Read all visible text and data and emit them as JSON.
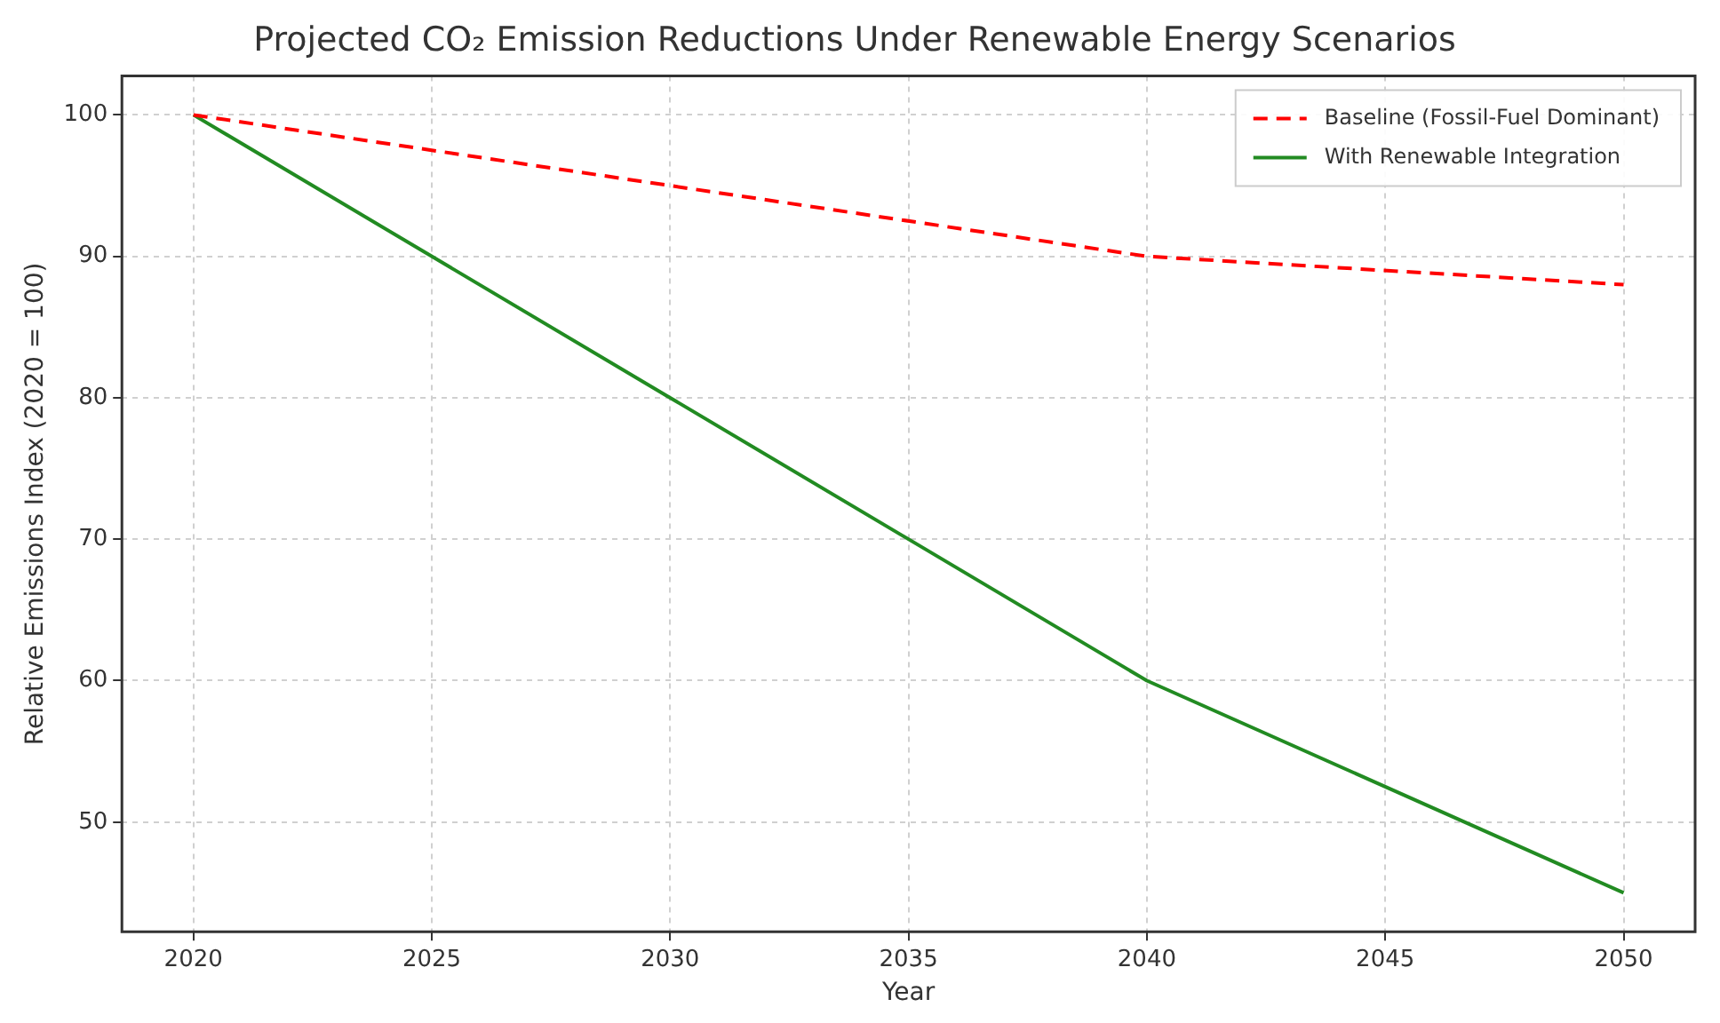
{
  "chart_data": {
    "type": "line",
    "title": "Projected CO₂ Emission Reductions Under Renewable Energy Scenarios",
    "xlabel": "Year",
    "ylabel": "Relative Emissions Index (2020 = 100)",
    "x": [
      2020,
      2030,
      2040,
      2050
    ],
    "series": [
      {
        "name": "Baseline (Fossil-Fuel Dominant)",
        "color": "#ff0000",
        "line_style": "dashed",
        "values": [
          100,
          95,
          90,
          88
        ]
      },
      {
        "name": "With Renewable Integration",
        "color": "#228b22",
        "line_style": "solid",
        "values": [
          100,
          80,
          60,
          45
        ]
      }
    ],
    "xlim": [
      2018.5,
      2051.5
    ],
    "xticks": [
      2020,
      2025,
      2030,
      2035,
      2040,
      2045,
      2050
    ],
    "ylim": [
      42.25,
      102.75
    ],
    "yticks": [
      50,
      60,
      70,
      80,
      90,
      100
    ],
    "grid": true,
    "legend": "top right",
    "marker": "none"
  }
}
